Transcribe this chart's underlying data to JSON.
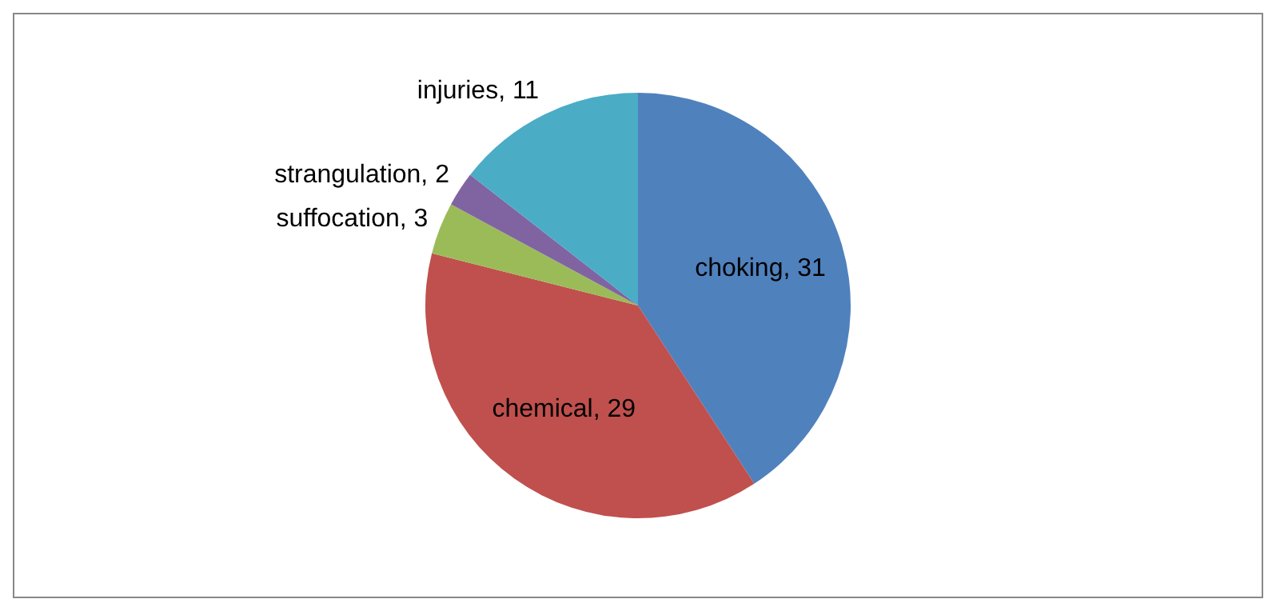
{
  "chart_data": {
    "type": "pie",
    "categories": [
      "choking",
      "chemical",
      "suffocation",
      "strangulation",
      "injuries"
    ],
    "values": [
      31,
      29,
      3,
      2,
      11
    ],
    "colors": [
      "#4f81bd",
      "#c0504d",
      "#9bbb59",
      "#8064a2",
      "#4bacc6"
    ],
    "value_labels": [
      ", 31",
      ", 29",
      ", 3",
      ", 2",
      ", 11"
    ],
    "legend": false
  }
}
